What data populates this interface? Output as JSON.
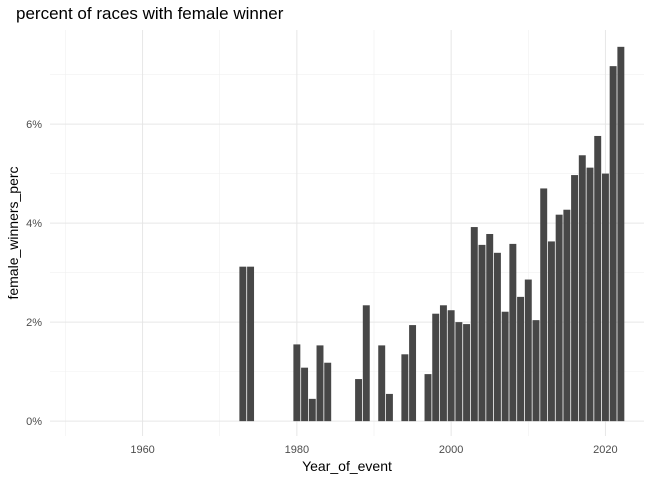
{
  "chart_data": {
    "type": "bar",
    "title": "percent of races with female winner",
    "xlabel": "Year_of_event",
    "ylabel": "female_winners_perc",
    "xlim": [
      1948,
      2025
    ],
    "ylim": [
      -0.3,
      7.9
    ],
    "x_ticks": [
      1960,
      1980,
      2000,
      2020
    ],
    "x_tick_labels": [
      "1960",
      "1980",
      "2000",
      "2020"
    ],
    "y_ticks": [
      0,
      2,
      4,
      6
    ],
    "y_tick_labels": [
      "0%",
      "2%",
      "4%",
      "6%"
    ],
    "grid": true,
    "bar_color": "#474747",
    "x": [
      1973,
      1974,
      1980,
      1981,
      1982,
      1983,
      1984,
      1988,
      1989,
      1991,
      1992,
      1994,
      1995,
      1997,
      1998,
      1999,
      2000,
      2001,
      2002,
      2003,
      2004,
      2005,
      2006,
      2007,
      2008,
      2009,
      2010,
      2011,
      2012,
      2013,
      2014,
      2015,
      2016,
      2017,
      2018,
      2019,
      2020,
      2021,
      2022
    ],
    "values": [
      3.12,
      3.12,
      1.55,
      1.08,
      0.45,
      1.53,
      1.18,
      0.85,
      2.34,
      1.53,
      0.55,
      1.35,
      1.94,
      0.95,
      2.17,
      2.34,
      2.24,
      2.0,
      1.96,
      3.92,
      3.56,
      3.78,
      3.4,
      2.21,
      3.58,
      2.51,
      2.86,
      2.04,
      4.7,
      3.63,
      4.17,
      4.27,
      4.97,
      5.37,
      5.12,
      5.76,
      5.0,
      7.17,
      7.56
    ]
  }
}
